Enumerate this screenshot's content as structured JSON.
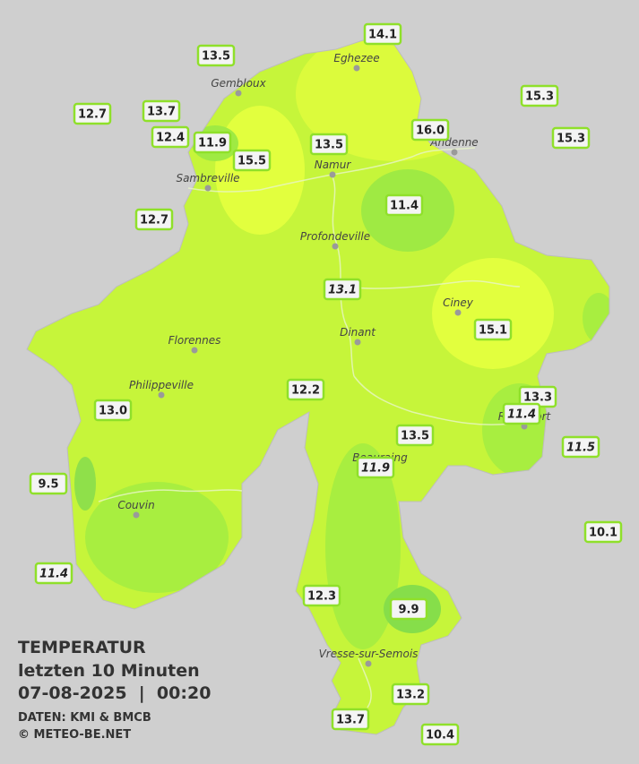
{
  "legend": {
    "title": "TEMPERATUR",
    "period": "letzten 10 Minuten",
    "datetime": "07-08-2025  |  00:20",
    "source": "DATEN: KMI & BMCB",
    "copyright": "© METEO-BE.NET"
  },
  "towns": [
    "Eghezee",
    "Gembloux",
    "Andenne",
    "Namur",
    "Sambreville",
    "Profondeville",
    "Ciney",
    "Dinant",
    "Florennes",
    "Philippeville",
    "Rochefort",
    "Beauraing",
    "Couvin",
    "Vresse-sur-Semois"
  ],
  "stations": [
    {
      "text": "14.1",
      "italic": false
    },
    {
      "text": "13.5",
      "italic": false
    },
    {
      "text": "15.3",
      "italic": false
    },
    {
      "text": "12.7",
      "italic": false
    },
    {
      "text": "13.7",
      "italic": false
    },
    {
      "text": "16.0",
      "italic": false
    },
    {
      "text": "15.3",
      "italic": false
    },
    {
      "text": "12.4",
      "italic": false
    },
    {
      "text": "11.9",
      "italic": false
    },
    {
      "text": "15.5",
      "italic": false
    },
    {
      "text": "13.5",
      "italic": false
    },
    {
      "text": "11.4",
      "italic": false
    },
    {
      "text": "12.7",
      "italic": false
    },
    {
      "text": "13.1",
      "italic": true
    },
    {
      "text": "15.1",
      "italic": false
    },
    {
      "text": "12.2",
      "italic": false
    },
    {
      "text": "13.3",
      "italic": false
    },
    {
      "text": "11.4",
      "italic": true
    },
    {
      "text": "13.0",
      "italic": false
    },
    {
      "text": "13.5",
      "italic": false
    },
    {
      "text": "11.5",
      "italic": true
    },
    {
      "text": "11.9",
      "italic": true
    },
    {
      "text": "9.5",
      "italic": false
    },
    {
      "text": "10.1",
      "italic": false
    },
    {
      "text": "11.4",
      "italic": true
    },
    {
      "text": "12.3",
      "italic": false
    },
    {
      "text": "9.9",
      "italic": false
    },
    {
      "text": "13.2",
      "italic": false
    },
    {
      "text": "13.7",
      "italic": false
    },
    {
      "text": "10.4",
      "italic": false
    }
  ]
}
